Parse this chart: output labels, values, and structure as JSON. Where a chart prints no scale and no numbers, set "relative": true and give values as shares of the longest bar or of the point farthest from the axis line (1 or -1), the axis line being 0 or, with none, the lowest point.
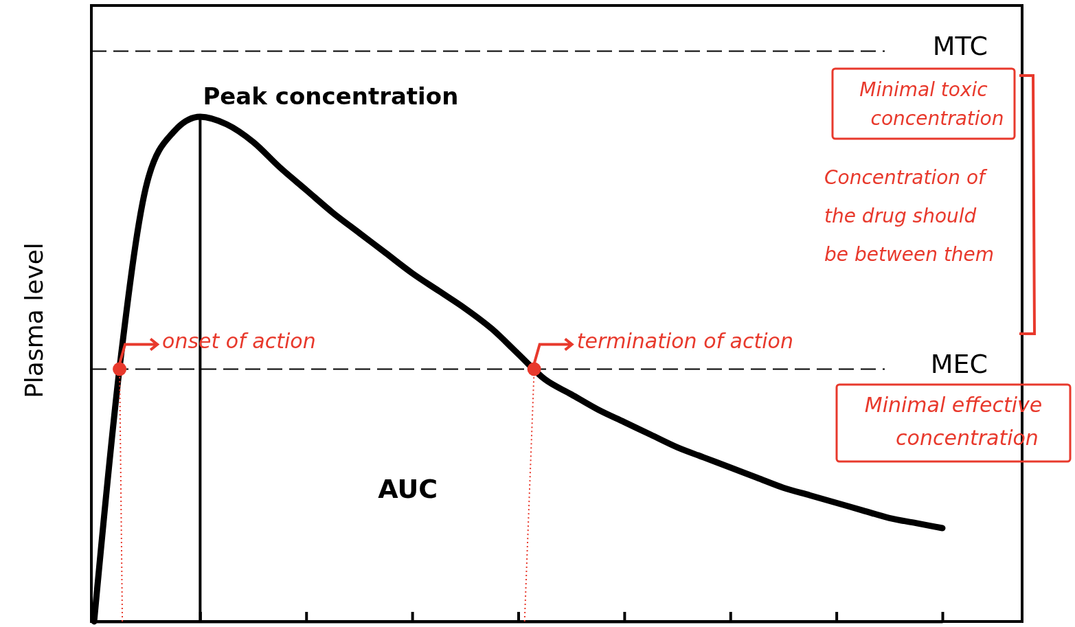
{
  "chart_data": {
    "type": "line",
    "relative": true,
    "ylabel": "Plasma level",
    "categories": [
      null,
      null,
      null,
      null,
      null,
      null,
      null,
      null,
      null,
      null,
      null,
      null,
      null,
      null,
      null,
      null,
      null,
      null,
      null,
      null,
      null,
      null,
      null,
      null,
      null,
      null,
      null,
      null,
      null,
      null,
      null,
      null,
      null
    ],
    "series": [
      {
        "color": "#000000",
        "values": [
          0,
          0.52,
          0.87,
          0.97,
          1,
          0.985,
          0.95,
          0.9,
          0.855,
          0.81,
          0.77,
          0.73,
          0.69,
          0.655,
          0.62,
          0.58,
          0.53,
          0.48,
          0.45,
          0.42,
          0.395,
          0.37,
          0.345,
          0.325,
          0.305,
          0.285,
          0.265,
          0.25,
          0.235,
          0.22,
          0.205,
          0.195,
          0.185
        ]
      }
    ],
    "ref_lines": [
      {
        "axis": "y",
        "value": 1.13,
        "label": "MTC",
        "color": "#000000",
        "line_style": "dashed"
      },
      {
        "axis": "y",
        "value": 0.5,
        "label": "MEC",
        "color": "#000000",
        "line_style": "dashed"
      }
    ],
    "annotations": [
      "Peak concentration",
      "AUC",
      "onset of action",
      "termination of action",
      "Minimal toxic concentration",
      "Concentration of the drug should be between them",
      "Minimal effective concentration"
    ],
    "grid": false
  }
}
